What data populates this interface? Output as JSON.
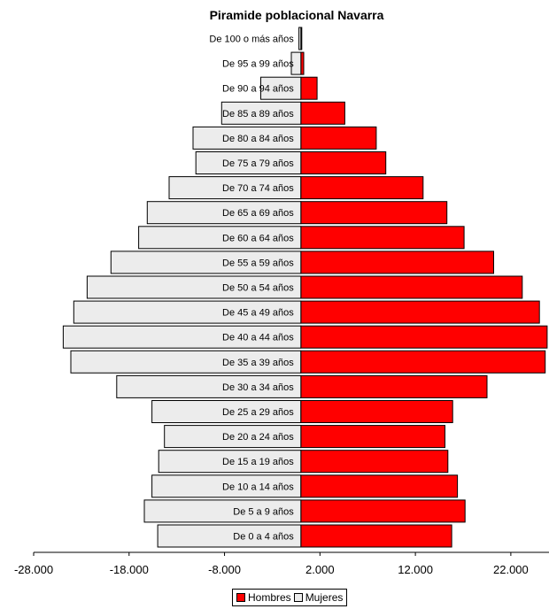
{
  "chart_data": {
    "type": "bar",
    "orientation": "horizontal",
    "title": "Piramide poblacional Navarra",
    "categories": [
      "De 100 o más años",
      "De 95 a 99 años",
      "De 90 a 94 años",
      "De 85 a 89 años",
      "De 80 a 84 años",
      "De 75 a 79 años",
      "De 70 a 74 años",
      "De 65 a 69 años",
      "De 60 a 64 años",
      "De 55 a 59 años",
      "De 50 a 54 años",
      "De 45 a 49 años",
      "De 40 a 44 años",
      "De 35 a 39 años",
      "De 30 a 34 años",
      "De 25 a 29 años",
      "De 20 a 24 años",
      "De 15 a 19 años",
      "De 10 a 14 años",
      "De 5 a 9 años",
      "De 0 a 4 años"
    ],
    "series": [
      {
        "name": "Hombres",
        "color": "#ff0000",
        "values": [
          50,
          300,
          1700,
          4600,
          7900,
          8900,
          12800,
          15300,
          17100,
          20200,
          23200,
          25000,
          25800,
          25600,
          19500,
          15900,
          15100,
          15400,
          16400,
          17200,
          15800
        ]
      },
      {
        "name": "Mujeres",
        "color": "#ececec",
        "values": [
          -200,
          -1000,
          -4200,
          -8300,
          -11300,
          -11000,
          -13800,
          -16100,
          -17000,
          -19900,
          -22400,
          -23800,
          -24900,
          -24100,
          -19300,
          -15600,
          -14300,
          -14900,
          -15600,
          -16400,
          -15000
        ]
      }
    ],
    "xlim": [
      -28000,
      26000
    ],
    "xticks": [
      -28000,
      -18000,
      -8000,
      2000,
      12000,
      22000
    ],
    "xtick_labels": [
      "-28.000",
      "-18.000",
      "-8.000",
      "2.000",
      "12.000",
      "22.000"
    ],
    "legend_position": "bottom-center",
    "grid": false
  }
}
